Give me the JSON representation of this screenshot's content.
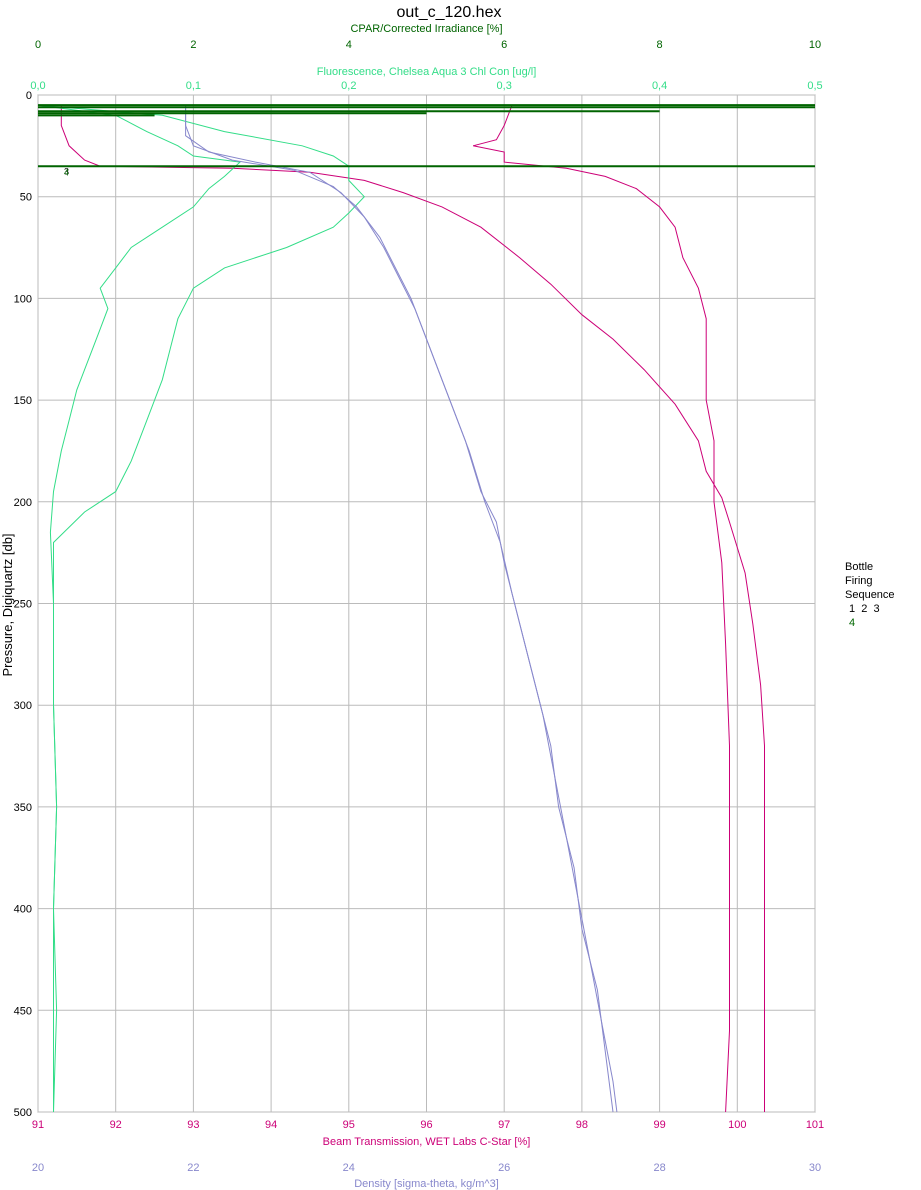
{
  "chart_data": {
    "type": "line",
    "title": "out_c_120.hex",
    "y_axis": {
      "label": "Pressure, Digiquartz [db]",
      "range": [
        0,
        500
      ],
      "ticks": [
        0,
        50,
        100,
        150,
        200,
        250,
        300,
        350,
        400,
        450,
        500
      ],
      "inverted": true
    },
    "x_axes": [
      {
        "id": "par",
        "label": "CPAR/Corrected Irradiance [%]",
        "position": "top-1",
        "range": [
          0,
          10
        ],
        "ticks": [
          "0",
          "2",
          "4",
          "6",
          "8",
          "10"
        ],
        "color": "#006400"
      },
      {
        "id": "fluor",
        "label": "Fluorescence, Chelsea Aqua 3 Chl Con [ug/l]",
        "position": "top-2",
        "range": [
          0,
          0.5
        ],
        "ticks": [
          "0,0",
          "0,1",
          "0,2",
          "0,3",
          "0,4",
          "0,5"
        ],
        "color": "#33dd88"
      },
      {
        "id": "trans",
        "label": "Beam Transmission, WET Labs C-Star [%]",
        "position": "bottom-1",
        "range": [
          91,
          101
        ],
        "ticks": [
          "91",
          "92",
          "93",
          "94",
          "95",
          "96",
          "97",
          "98",
          "99",
          "100",
          "101"
        ],
        "color": "#cc0077"
      },
      {
        "id": "dens",
        "label": "Density [sigma-theta, kg/m^3]",
        "position": "bottom-2",
        "range": [
          20,
          30
        ],
        "ticks": [
          "20",
          "22",
          "24",
          "26",
          "28",
          "30"
        ],
        "color": "#8888cc"
      }
    ],
    "grid": true,
    "series": [
      {
        "axis": "trans",
        "color": "#cc0077",
        "points": [
          [
            91.3,
            5
          ],
          [
            91.3,
            15
          ],
          [
            91.4,
            25
          ],
          [
            91.6,
            32
          ],
          [
            91.8,
            35
          ],
          [
            93.5,
            36
          ],
          [
            94.5,
            38
          ],
          [
            95.2,
            42
          ],
          [
            95.7,
            48
          ],
          [
            96.2,
            55
          ],
          [
            96.7,
            65
          ],
          [
            97.2,
            80
          ],
          [
            97.6,
            93
          ],
          [
            98.0,
            108
          ],
          [
            98.4,
            120
          ],
          [
            98.8,
            135
          ],
          [
            99.2,
            152
          ],
          [
            99.5,
            170
          ],
          [
            99.6,
            185
          ],
          [
            99.8,
            198
          ],
          [
            99.9,
            210
          ],
          [
            100.1,
            235
          ],
          [
            100.2,
            260
          ],
          [
            100.3,
            290
          ],
          [
            100.35,
            320
          ],
          [
            100.35,
            380
          ],
          [
            100.35,
            450
          ],
          [
            100.35,
            500
          ]
        ]
      },
      {
        "axis": "trans",
        "color": "#cc0077",
        "points": [
          [
            97.1,
            5
          ],
          [
            97.0,
            15
          ],
          [
            96.9,
            22
          ],
          [
            96.6,
            25
          ],
          [
            97.0,
            28
          ],
          [
            97.0,
            33
          ],
          [
            97.8,
            36
          ],
          [
            98.3,
            40
          ],
          [
            98.7,
            46
          ],
          [
            99.0,
            55
          ],
          [
            99.2,
            65
          ],
          [
            99.3,
            80
          ],
          [
            99.5,
            95
          ],
          [
            99.6,
            110
          ],
          [
            99.6,
            130
          ],
          [
            99.6,
            150
          ],
          [
            99.7,
            170
          ],
          [
            99.7,
            200
          ],
          [
            99.8,
            230
          ],
          [
            99.85,
            270
          ],
          [
            99.9,
            320
          ],
          [
            99.9,
            400
          ],
          [
            99.9,
            460
          ],
          [
            99.85,
            500
          ]
        ]
      },
      {
        "axis": "fluor",
        "color": "#33dd88",
        "points": [
          [
            0.0,
            5
          ],
          [
            0.05,
            10
          ],
          [
            0.07,
            18
          ],
          [
            0.09,
            25
          ],
          [
            0.1,
            30
          ],
          [
            0.13,
            33
          ],
          [
            0.12,
            40
          ],
          [
            0.11,
            46
          ],
          [
            0.1,
            55
          ],
          [
            0.08,
            65
          ],
          [
            0.06,
            75
          ],
          [
            0.05,
            85
          ],
          [
            0.04,
            95
          ],
          [
            0.045,
            105
          ],
          [
            0.04,
            115
          ],
          [
            0.035,
            125
          ],
          [
            0.03,
            135
          ],
          [
            0.025,
            145
          ],
          [
            0.02,
            160
          ],
          [
            0.015,
            175
          ],
          [
            0.01,
            195
          ],
          [
            0.008,
            215
          ],
          [
            0.01,
            250
          ],
          [
            0.01,
            300
          ],
          [
            0.012,
            350
          ],
          [
            0.01,
            400
          ],
          [
            0.01,
            450
          ],
          [
            0.01,
            500
          ]
        ]
      },
      {
        "axis": "fluor",
        "color": "#33dd88",
        "points": [
          [
            0.0,
            5
          ],
          [
            0.08,
            10
          ],
          [
            0.12,
            18
          ],
          [
            0.17,
            25
          ],
          [
            0.19,
            30
          ],
          [
            0.2,
            35
          ],
          [
            0.2,
            42
          ],
          [
            0.21,
            50
          ],
          [
            0.2,
            58
          ],
          [
            0.19,
            65
          ],
          [
            0.16,
            75
          ],
          [
            0.12,
            85
          ],
          [
            0.1,
            95
          ],
          [
            0.09,
            110
          ],
          [
            0.085,
            125
          ],
          [
            0.08,
            140
          ],
          [
            0.07,
            160
          ],
          [
            0.06,
            180
          ],
          [
            0.05,
            195
          ],
          [
            0.03,
            205
          ],
          [
            0.01,
            220
          ],
          [
            0.01,
            250
          ],
          [
            0.01,
            300
          ],
          [
            0.012,
            350
          ],
          [
            0.01,
            400
          ],
          [
            0.012,
            450
          ],
          [
            0.01,
            500
          ]
        ]
      },
      {
        "axis": "dens",
        "color": "#8888cc",
        "points": [
          [
            21.9,
            5
          ],
          [
            21.9,
            15
          ],
          [
            22.0,
            25
          ],
          [
            22.5,
            32
          ],
          [
            23.3,
            37
          ],
          [
            23.8,
            45
          ],
          [
            24.1,
            55
          ],
          [
            24.4,
            70
          ],
          [
            24.6,
            85
          ],
          [
            24.8,
            100
          ],
          [
            25.0,
            120
          ],
          [
            25.2,
            140
          ],
          [
            25.5,
            170
          ],
          [
            25.7,
            195
          ],
          [
            25.9,
            210
          ],
          [
            26.0,
            230
          ],
          [
            26.2,
            260
          ],
          [
            26.4,
            290
          ],
          [
            26.6,
            320
          ],
          [
            26.7,
            350
          ],
          [
            26.9,
            380
          ],
          [
            27.0,
            410
          ],
          [
            27.2,
            440
          ],
          [
            27.3,
            470
          ],
          [
            27.4,
            500
          ]
        ]
      },
      {
        "axis": "dens",
        "color": "#8888cc",
        "points": [
          [
            21.9,
            5
          ],
          [
            21.9,
            20
          ],
          [
            22.2,
            28
          ],
          [
            22.8,
            33
          ],
          [
            23.5,
            38
          ],
          [
            23.9,
            48
          ],
          [
            24.2,
            60
          ],
          [
            24.45,
            75
          ],
          [
            24.65,
            90
          ],
          [
            24.85,
            105
          ],
          [
            25.05,
            125
          ],
          [
            25.3,
            150
          ],
          [
            25.55,
            175
          ],
          [
            25.75,
            200
          ],
          [
            25.95,
            220
          ],
          [
            26.1,
            245
          ],
          [
            26.3,
            275
          ],
          [
            26.5,
            305
          ],
          [
            26.65,
            335
          ],
          [
            26.8,
            365
          ],
          [
            26.95,
            395
          ],
          [
            27.1,
            425
          ],
          [
            27.25,
            455
          ],
          [
            27.4,
            485
          ],
          [
            27.45,
            500
          ]
        ]
      }
    ],
    "par_lines": [
      {
        "pressure": 5,
        "value": 10
      },
      {
        "pressure": 6,
        "value": 10
      },
      {
        "pressure": 8,
        "value": 8
      },
      {
        "pressure": 9,
        "value": 5
      },
      {
        "pressure": 10,
        "value": 1.5
      },
      {
        "pressure": 35,
        "value": 10
      }
    ],
    "bottle_markers": [
      "3",
      "4"
    ],
    "bottle_marker_pressure": 37,
    "legend": {
      "title_lines": [
        "Bottle",
        "Firing",
        "Sequence"
      ],
      "numbers_line1": "1  2  3",
      "numbers_line2": "4"
    }
  }
}
